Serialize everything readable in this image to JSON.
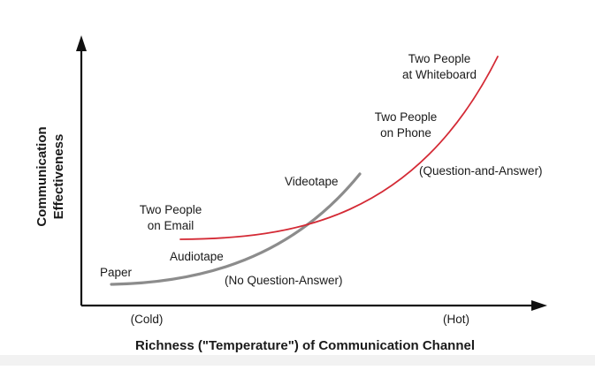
{
  "diagram": {
    "y_axis_title_line1": "Communication",
    "y_axis_title_line2": "Effectiveness",
    "x_axis_title": "Richness (\"Temperature\") of Communication Channel",
    "x_axis_cold": "(Cold)",
    "x_axis_hot": "(Hot)",
    "no_qa_label": "(No Question-Answer)",
    "qa_label": "(Question-and-Answer)",
    "colors": {
      "qa_curve": "#d42a35",
      "no_qa_curve": "#8c8c8c",
      "axis": "#111111"
    },
    "points": {
      "paper": "Paper",
      "audiotape": "Audiotape",
      "videotape": "Videotape",
      "email_line1": "Two People",
      "email_line2": "on Email",
      "phone_line1": "Two People",
      "phone_line2": "on Phone",
      "whiteboard_line1": "Two People",
      "whiteboard_line2": "at Whiteboard"
    }
  }
}
